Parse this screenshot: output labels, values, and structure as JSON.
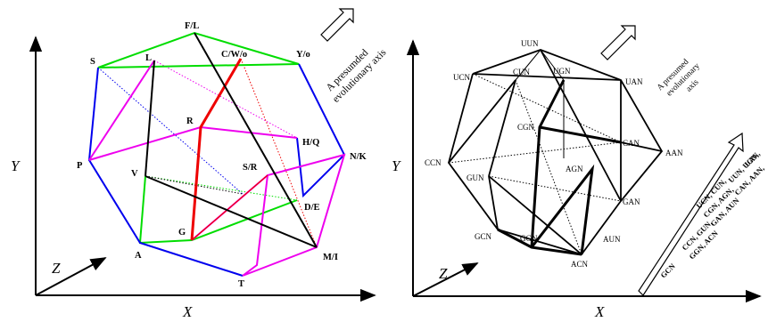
{
  "left_panel": {
    "axes": {
      "x": "X",
      "y": "Y",
      "z": "Z"
    },
    "evolution_caption": [
      "A presumded",
      "evolutionary axis"
    ],
    "vertex_labels": {
      "FL": "F/L",
      "CWo": "C/W/o",
      "Yo": "Y/o",
      "S": "S",
      "L": "L",
      "R": "R",
      "HQ": "H/Q",
      "NK": "N/K",
      "P": "P",
      "V": "V",
      "SR": "S/R",
      "DE": "D/E",
      "G": "G",
      "A": "A",
      "MI": "M/I",
      "T": "T"
    }
  },
  "right_panel": {
    "axes": {
      "x": "X",
      "y": "Y",
      "z": "Z"
    },
    "evolution_caption": [
      "A presumed",
      "evolutionary",
      "axis"
    ],
    "vertex_labels": {
      "UUN": "UUN",
      "UCN": "UCN",
      "CUN": "CUN",
      "UGN": "UGN",
      "UAN": "UAN",
      "CGN": "CGN",
      "CAN": "CAN",
      "AAN": "AAN",
      "CCN": "CCN",
      "AGN": "AGN",
      "GUN": "GUN",
      "GAN": "GAN",
      "GCN": "GCN",
      "GGN": "GGN",
      "AUN": "AUN",
      "ACN": "ACN"
    },
    "mutability_groups": [
      "UAN,",
      "UUN, UGN,",
      "CAN, AAN,",
      "UCN, CUN,",
      "CGN, AGN,",
      "GAN, AUN",
      "CCN, GUN,",
      "GGN, ACN",
      "GCN"
    ]
  },
  "colors": {
    "green": "#00dd00",
    "blue": "#0000ee",
    "magenta": "#ee00ee",
    "red": "#ee0000",
    "black": "#000000"
  }
}
